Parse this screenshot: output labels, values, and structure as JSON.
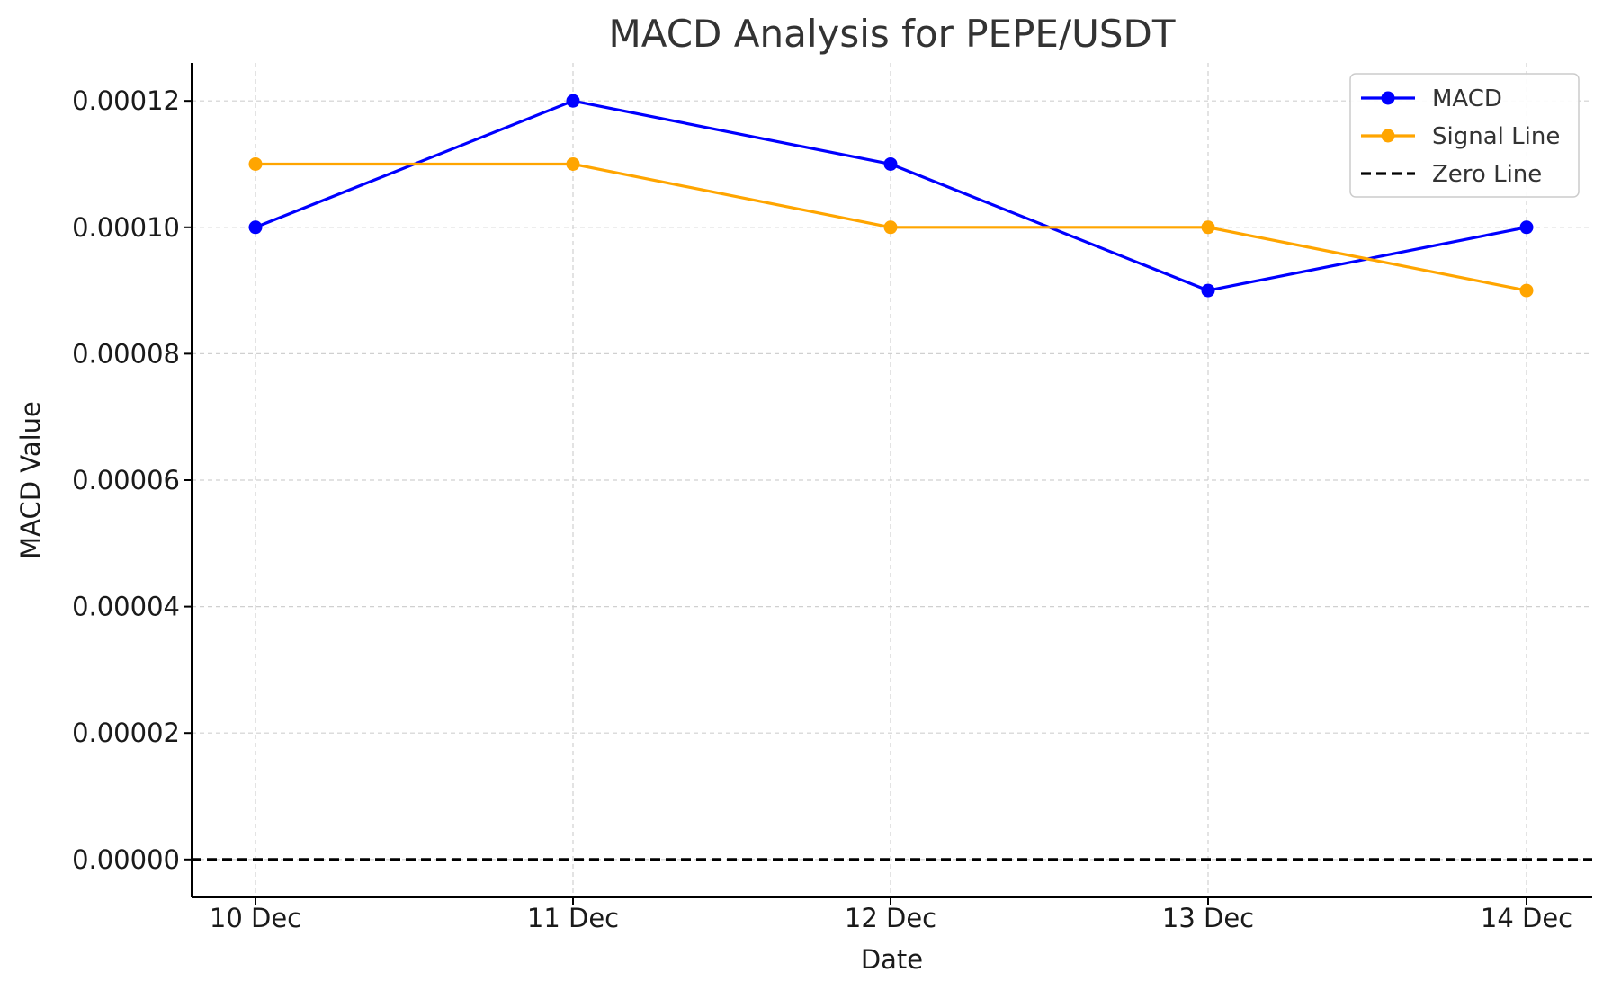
{
  "chart_data": {
    "type": "line",
    "title": "MACD Analysis for PEPE/USDT",
    "xlabel": "Date",
    "ylabel": "MACD Value",
    "categories": [
      "10 Dec",
      "11 Dec",
      "12 Dec",
      "13 Dec",
      "14 Dec"
    ],
    "ylim": [
      -6e-06,
      0.000126
    ],
    "yticks": [
      0.0,
      2e-05,
      4e-05,
      6e-05,
      8e-05,
      0.0001,
      0.00012
    ],
    "ytick_labels": [
      "0.00000",
      "0.00002",
      "0.00004",
      "0.00006",
      "0.00008",
      "0.00010",
      "0.00012"
    ],
    "grid": true,
    "legend_position": "top-right",
    "series": [
      {
        "name": "MACD",
        "color": "#0000ff",
        "marker": "circle",
        "values": [
          0.0001,
          0.00012,
          0.00011,
          9e-05,
          0.0001
        ]
      },
      {
        "name": "Signal Line",
        "color": "#ffa500",
        "marker": "circle",
        "values": [
          0.00011,
          0.00011,
          0.0001,
          0.0001,
          9e-05
        ]
      }
    ],
    "reference_lines": [
      {
        "name": "Zero Line",
        "value": 0,
        "color": "#000000",
        "style": "dashed"
      }
    ]
  }
}
